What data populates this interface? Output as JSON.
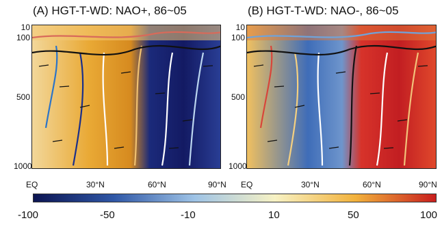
{
  "panels": [
    {
      "title": "(A) HGT-T-WD: NAO+, 86~05",
      "y_ticks": [
        "10",
        "100",
        "500",
        "1000"
      ],
      "x_ticks": [
        "EQ",
        "30°N",
        "60°N",
        "90°N"
      ],
      "field_colors": [
        "#f2d79a",
        "#e9a935",
        "#d68a1f",
        "#1b2a7a",
        "#131a63",
        "#2a3f96"
      ]
    },
    {
      "title": "(B) HGT-T-WD: NAO-, 86~05",
      "y_ticks": [
        "10",
        "100",
        "500",
        "1000"
      ],
      "x_ticks": [
        "EQ",
        "30°N",
        "60°N",
        "90°N"
      ],
      "field_colors": [
        "#f0c060",
        "#3f6db8",
        "#6e95cc",
        "#d7332a",
        "#c21e22",
        "#e14a2c"
      ]
    }
  ],
  "colorbar": {
    "labels": [
      "-100",
      "-50",
      "-10",
      "10",
      "50",
      "100"
    ],
    "colors": [
      "#0c1552",
      "#2f57a6",
      "#9ec3e6",
      "#f7f2c4",
      "#f2b23c",
      "#c81e1e"
    ]
  }
}
